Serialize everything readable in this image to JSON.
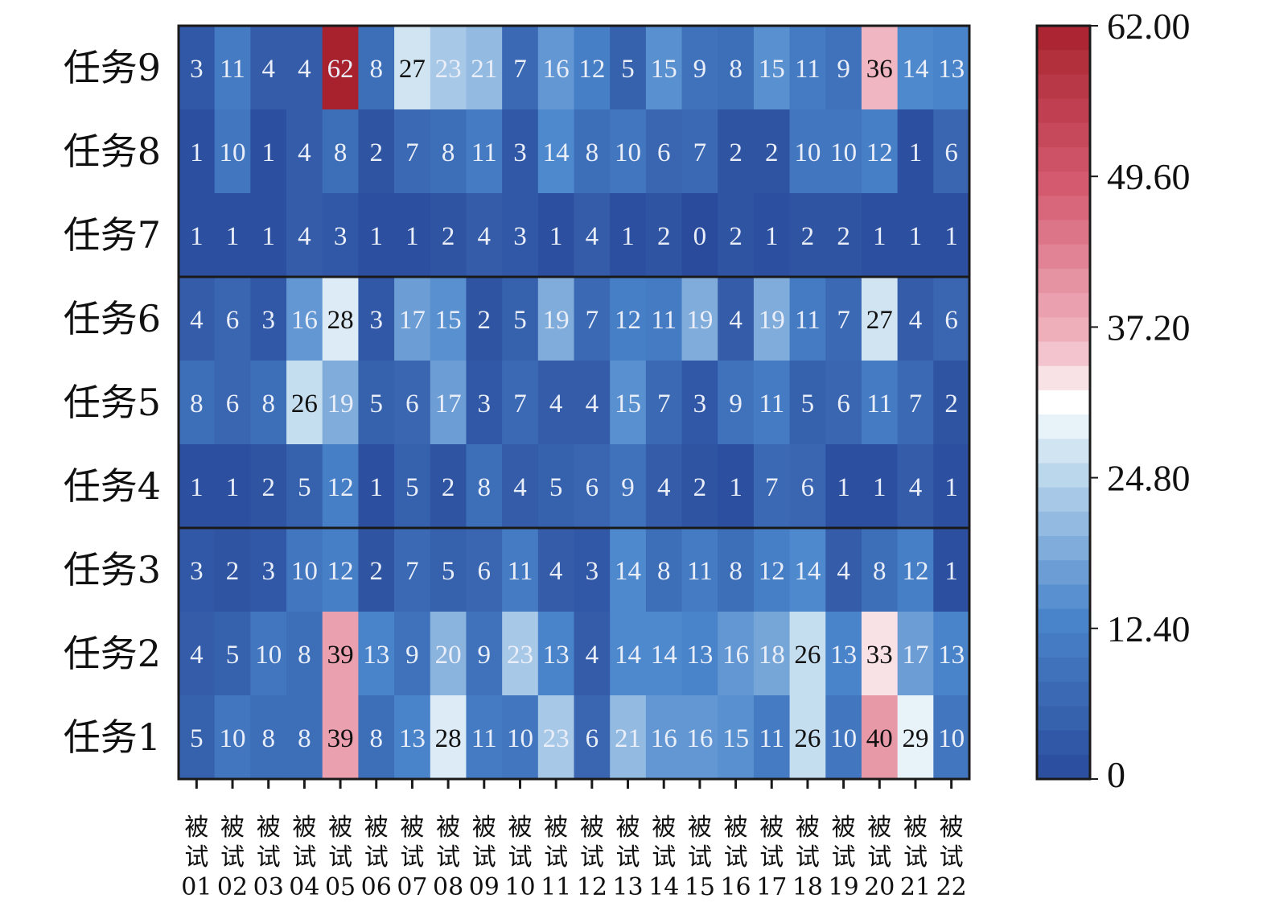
{
  "chart_data": {
    "type": "heatmap",
    "rows": [
      "任务9",
      "任务8",
      "任务7",
      "任务6",
      "任务5",
      "任务4",
      "任务3",
      "任务2",
      "任务1"
    ],
    "columns": [
      "被\n试\n01",
      "被\n试\n02",
      "被\n试\n03",
      "被\n试\n04",
      "被\n试\n05",
      "被\n试\n06",
      "被\n试\n07",
      "被\n试\n08",
      "被\n试\n09",
      "被\n试\n10",
      "被\n试\n11",
      "被\n试\n12",
      "被\n试\n13",
      "被\n试\n14",
      "被\n试\n15",
      "被\n试\n16",
      "被\n试\n17",
      "被\n试\n18",
      "被\n试\n19",
      "被\n试\n20",
      "被\n试\n21",
      "被\n试\n22"
    ],
    "values": [
      [
        3,
        11,
        4,
        4,
        62,
        8,
        27,
        23,
        21,
        7,
        16,
        12,
        5,
        15,
        9,
        8,
        15,
        11,
        9,
        36,
        14,
        13
      ],
      [
        1,
        10,
        1,
        4,
        8,
        2,
        7,
        8,
        11,
        3,
        14,
        8,
        10,
        6,
        7,
        2,
        2,
        10,
        10,
        12,
        1,
        6
      ],
      [
        1,
        1,
        1,
        4,
        3,
        1,
        1,
        2,
        4,
        3,
        1,
        4,
        1,
        2,
        0,
        2,
        1,
        2,
        2,
        1,
        1,
        1
      ],
      [
        4,
        6,
        3,
        16,
        28,
        3,
        17,
        15,
        2,
        5,
        19,
        7,
        12,
        11,
        19,
        4,
        19,
        11,
        7,
        27,
        4,
        6
      ],
      [
        8,
        6,
        8,
        26,
        19,
        5,
        6,
        17,
        3,
        7,
        4,
        4,
        15,
        7,
        3,
        9,
        11,
        5,
        6,
        11,
        7,
        2
      ],
      [
        1,
        1,
        2,
        5,
        12,
        1,
        5,
        2,
        8,
        4,
        5,
        6,
        9,
        4,
        2,
        1,
        7,
        6,
        1,
        1,
        4,
        1
      ],
      [
        3,
        2,
        3,
        10,
        12,
        2,
        7,
        5,
        6,
        11,
        4,
        3,
        14,
        8,
        11,
        8,
        12,
        14,
        4,
        8,
        12,
        1
      ],
      [
        4,
        5,
        10,
        8,
        39,
        13,
        9,
        20,
        9,
        23,
        13,
        4,
        14,
        14,
        13,
        16,
        18,
        26,
        13,
        33,
        17,
        13
      ],
      [
        5,
        10,
        8,
        8,
        39,
        8,
        13,
        28,
        11,
        10,
        23,
        6,
        21,
        16,
        16,
        15,
        11,
        26,
        10,
        40,
        29,
        10
      ]
    ],
    "group_separators_after_row": [
      2,
      5
    ],
    "colorbar": {
      "min": 0,
      "max": 62,
      "ticks": [
        "0",
        "12.40",
        "24.80",
        "37.20",
        "49.60",
        "62.00"
      ],
      "colors": {
        "low": "#2a4b9b",
        "mid_low": "#4b86cc",
        "light": "#c5deef",
        "center": "#ffffff",
        "pink": "#f0b6c2",
        "mid_high": "#d65d73",
        "high": "#a8222d"
      }
    }
  }
}
